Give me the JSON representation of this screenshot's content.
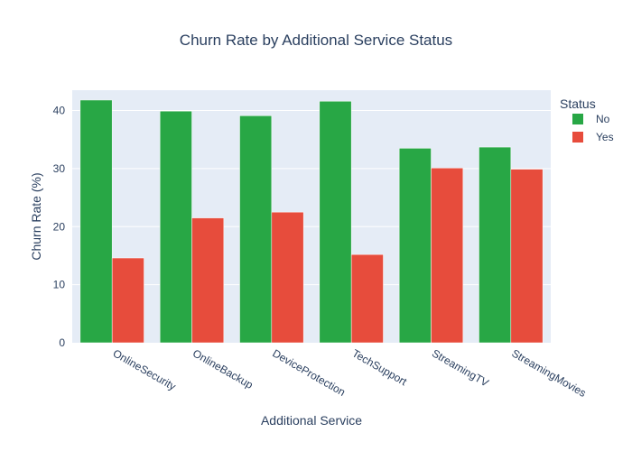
{
  "chart_data": {
    "type": "bar",
    "title": "Churn Rate by Additional Service Status",
    "xlabel": "Additional Service",
    "ylabel": "Churn Rate (%)",
    "categories": [
      "OnlineSecurity",
      "OnlineBackup",
      "DeviceProtection",
      "TechSupport",
      "StreamingTV",
      "StreamingMovies"
    ],
    "series": [
      {
        "name": "No",
        "values": [
          41.8,
          39.9,
          39.1,
          41.6,
          33.5,
          33.7
        ],
        "color": "#28a745"
      },
      {
        "name": "Yes",
        "values": [
          14.6,
          21.5,
          22.5,
          15.2,
          30.1,
          29.9
        ],
        "color": "#e74c3c"
      }
    ],
    "ylim": [
      0,
      43.5
    ],
    "yticks": [
      0,
      10,
      20,
      30,
      40
    ],
    "legend": {
      "title": "Status",
      "placement": "top-right"
    },
    "grid": true,
    "plot_background": "#e5ecf6"
  }
}
